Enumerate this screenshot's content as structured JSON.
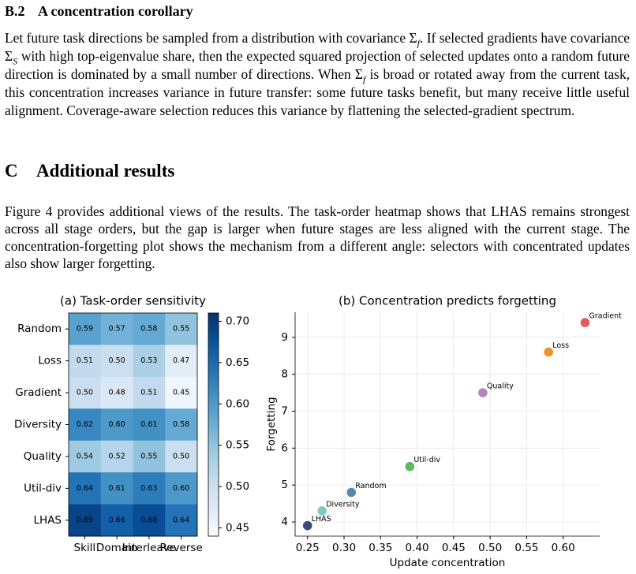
{
  "sections": [
    {
      "number": "B.2",
      "title": "A concentration corollary",
      "paragraph": [
        "Let future task directions be sampled from a distribution with covariance ",
        "Σ",
        "f",
        ". If selected gradients have covariance ",
        "Σ",
        "S",
        " with high top-eigenvalue share, then the expected squared projection of selected updates onto a random future direction is dominated by a small number of directions. When ",
        "Σ",
        "f",
        " is broad or rotated away from the current task, this concentration increases variance in future transfer: some future tasks benefit, but many receive little useful alignment. Coverage-aware selection reduces this variance by flattening the selected-gradient spectrum."
      ]
    },
    {
      "number": "C",
      "title": "Additional results",
      "paragraph": [
        "Figure 4 provides additional views of the results. The task-order heatmap shows that LHAS remains strongest across all stage orders, but the gap is larger when future stages are less aligned with the current stage. The concentration-forgetting plot shows the mechanism from a different angle: selectors with concentrated updates also show larger forgetting."
      ]
    }
  ],
  "chart_data": [
    {
      "type": "heatmap",
      "title": "(a) Task-order sensitivity",
      "categories": [
        "Random",
        "Loss",
        "Gradient",
        "Diversity",
        "Quality",
        "Util-div",
        "LHAS"
      ],
      "columns": [
        "Skill",
        "Domain",
        "Interleave",
        "Reverse"
      ],
      "values": [
        [
          0.59,
          0.57,
          0.58,
          0.55
        ],
        [
          0.51,
          0.5,
          0.53,
          0.47
        ],
        [
          0.5,
          0.48,
          0.51,
          0.45
        ],
        [
          0.62,
          0.6,
          0.61,
          0.58
        ],
        [
          0.54,
          0.52,
          0.55,
          0.5
        ],
        [
          0.64,
          0.61,
          0.63,
          0.6
        ],
        [
          0.69,
          0.66,
          0.68,
          0.64
        ]
      ],
      "value_labels": [
        [
          "0.59",
          "0.57",
          "0.58",
          "0.55"
        ],
        [
          "0.51",
          "0.50",
          "0.53",
          "0.47"
        ],
        [
          "0.50",
          "0.48",
          "0.51",
          "0.45"
        ],
        [
          "0.62",
          "0.60",
          "0.61",
          "0.58"
        ],
        [
          "0.54",
          "0.52",
          "0.55",
          "0.50"
        ],
        [
          "0.64",
          "0.61",
          "0.63",
          "0.60"
        ],
        [
          "0.69",
          "0.66",
          "0.68",
          "0.64"
        ]
      ],
      "colormap": "Blues",
      "clim": [
        0.44,
        0.71
      ],
      "cticks": [
        0.45,
        {
          "value": 0.5,
          "label": "0.50"
        },
        0.55,
        {
          "value": 0.6,
          "label": "0.60"
        },
        0.65,
        {
          "value": 0.7,
          "label": "0.70"
        }
      ]
    },
    {
      "type": "scatter",
      "title": "(b) Concentration predicts forgetting",
      "x_label": "Update concentration",
      "y_label": "Forgetting",
      "series": [
        {
          "name": "LHAS",
          "color": "#3b4a78",
          "x": [
            0.25
          ],
          "values": [
            3.9
          ]
        },
        {
          "name": "Diversity",
          "color": "#7ecbc2",
          "x": [
            0.27
          ],
          "values": [
            4.3
          ]
        },
        {
          "name": "Random",
          "color": "#5b87ad",
          "x": [
            0.31
          ],
          "values": [
            4.8
          ]
        },
        {
          "name": "Util-div",
          "color": "#5db95d",
          "x": [
            0.39
          ],
          "values": [
            5.5
          ]
        },
        {
          "name": "Quality",
          "color": "#b985b8",
          "x": [
            0.49
          ],
          "values": [
            7.5
          ]
        },
        {
          "name": "Loss",
          "color": "#f09030",
          "x": [
            0.58
          ],
          "values": [
            8.6
          ]
        },
        {
          "name": "Gradient",
          "color": "#e15b60",
          "x": [
            0.63
          ],
          "values": [
            9.4
          ]
        }
      ],
      "xlim": [
        0.233,
        0.65
      ],
      "ylim": [
        3.615,
        9.68
      ],
      "xticks": [
        0.25,
        {
          "value": 0.3,
          "label": "0.30"
        },
        0.35,
        {
          "value": 0.4,
          "label": "0.40"
        },
        0.45,
        {
          "value": 0.5,
          "label": "0.50"
        },
        0.55,
        {
          "value": 0.6,
          "label": "0.60"
        }
      ],
      "yticks": [
        4,
        5,
        6,
        7,
        8,
        9
      ],
      "grid": true
    }
  ]
}
